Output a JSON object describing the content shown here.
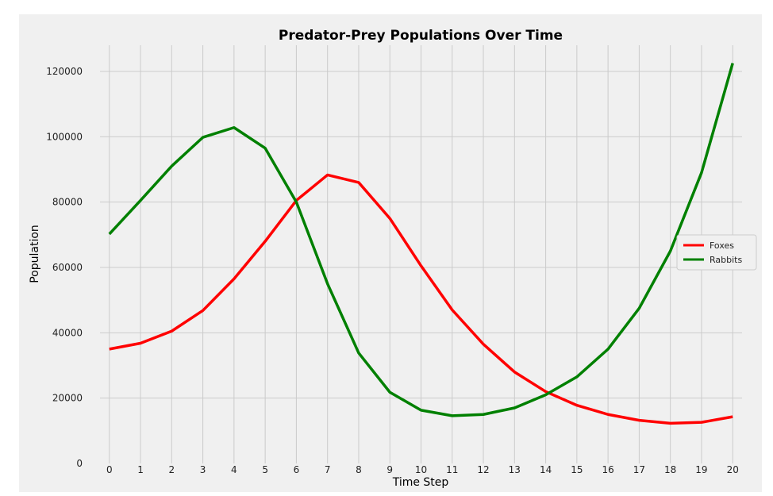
{
  "chart_data": {
    "type": "line",
    "title": "Predator-Prey Populations Over Time",
    "xlabel": "Time Step",
    "ylabel": "Population",
    "x": [
      0,
      1,
      2,
      3,
      4,
      5,
      6,
      7,
      8,
      9,
      10,
      11,
      12,
      13,
      14,
      15,
      16,
      17,
      18,
      19,
      20
    ],
    "xlim": [
      -0.3,
      20.3
    ],
    "ylim": [
      0,
      128000
    ],
    "yticks": [
      0,
      20000,
      40000,
      60000,
      80000,
      100000,
      120000
    ],
    "grid": true,
    "legend_position": "right",
    "series": [
      {
        "name": "Foxes",
        "color": "#ff0000",
        "values": [
          35000,
          36800,
          40500,
          46800,
          56500,
          68000,
          80500,
          88300,
          86000,
          75000,
          60500,
          47000,
          36500,
          28000,
          22000,
          17800,
          15000,
          13200,
          12300,
          12600,
          14300
        ]
      },
      {
        "name": "Rabbits",
        "color": "#008000",
        "values": [
          70200,
          80500,
          91000,
          99800,
          102800,
          96500,
          80000,
          55000,
          33800,
          21800,
          16300,
          14600,
          15000,
          17000,
          21000,
          26500,
          35000,
          47500,
          65000,
          89000,
          122500
        ]
      }
    ]
  }
}
